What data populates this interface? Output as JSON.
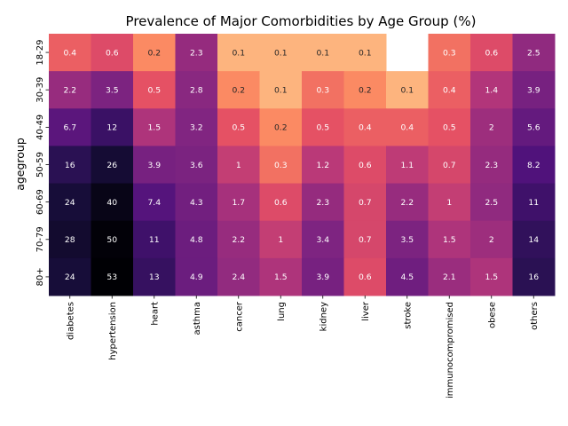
{
  "chart_data": {
    "type": "heatmap",
    "title": "Prevalence of Major Comorbidities by Age Group (%)",
    "xlabel": "",
    "ylabel": "agegroup",
    "columns": [
      "diabetes",
      "hypertension",
      "heart",
      "asthma",
      "cancer",
      "lung",
      "kidney",
      "liver",
      "stroke",
      "immunocompromised",
      "obese",
      "others"
    ],
    "rows": [
      "18-29",
      "30-39",
      "40-49",
      "50-59",
      "60-69",
      "70-79",
      "80+"
    ],
    "values": [
      [
        0.4,
        0.6,
        0.2,
        2.3,
        0.1,
        0.1,
        0.1,
        0.1,
        null,
        0.3,
        0.6,
        2.5
      ],
      [
        2.2,
        3.5,
        0.5,
        2.8,
        0.2,
        0.1,
        0.3,
        0.2,
        0.1,
        0.4,
        1.4,
        3.9
      ],
      [
        6.7,
        12,
        1.5,
        3.2,
        0.5,
        0.2,
        0.5,
        0.4,
        0.4,
        0.5,
        2,
        5.6
      ],
      [
        16,
        26,
        3.9,
        3.6,
        1,
        0.3,
        1.2,
        0.6,
        1.1,
        0.7,
        2.3,
        8.2
      ],
      [
        24,
        40,
        7.4,
        4.3,
        1.7,
        0.6,
        2.3,
        0.7,
        2.2,
        1,
        2.5,
        11
      ],
      [
        28,
        50,
        11,
        4.8,
        2.2,
        1,
        3.4,
        0.7,
        3.5,
        1.5,
        2,
        14
      ],
      [
        24,
        53,
        13,
        4.9,
        2.4,
        1.5,
        3.9,
        0.6,
        4.5,
        2.1,
        1.5,
        16
      ]
    ],
    "color_scale": "log",
    "colormap": "magma",
    "grid": false,
    "legend": "none"
  }
}
